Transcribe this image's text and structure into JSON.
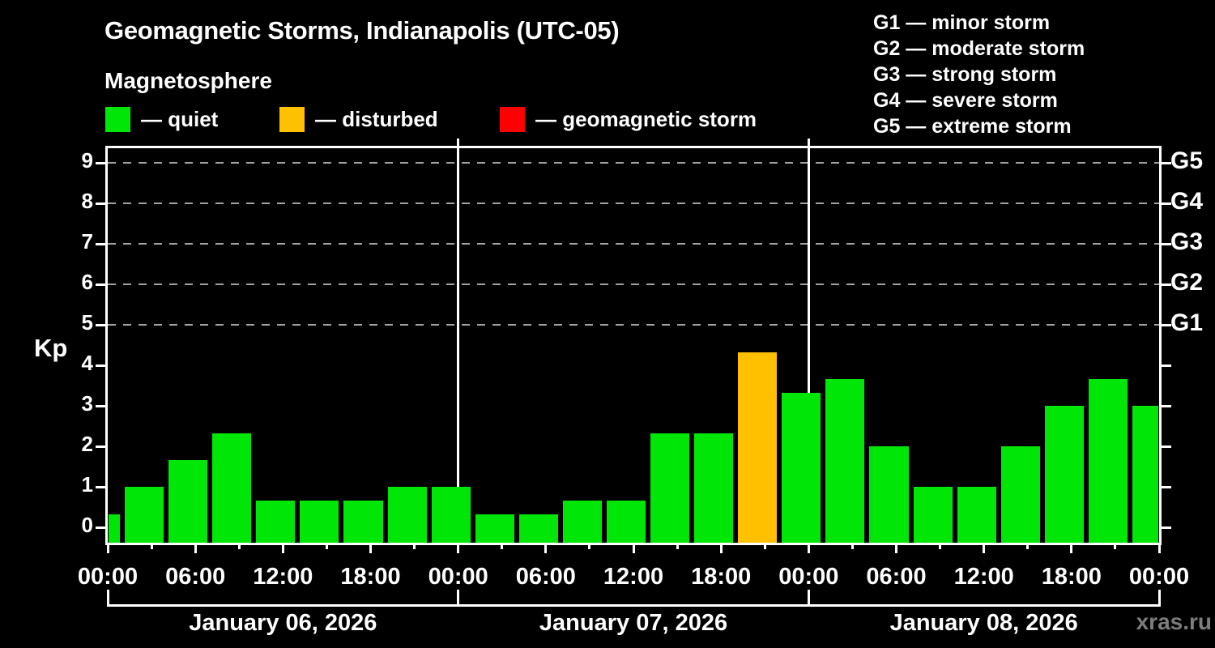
{
  "header": {
    "title": "Geomagnetic Storms, Indianapolis (UTC-05)",
    "subtitle": "Magnetosphere"
  },
  "legend": [
    {
      "key": "quiet",
      "label": "— quiet",
      "color": "#00e606"
    },
    {
      "key": "disturbed",
      "label": "— disturbed",
      "color": "#ffc000"
    },
    {
      "key": "storm",
      "label": "— geomagnetic storm",
      "color": "#ff0000"
    }
  ],
  "g_legend": [
    {
      "label": "G1 — minor storm"
    },
    {
      "label": "G2 — moderate storm"
    },
    {
      "label": "G3 — strong storm"
    },
    {
      "label": "G4 — severe storm"
    },
    {
      "label": "G5 — extreme storm"
    }
  ],
  "watermark": "xras.ru",
  "chart_data": {
    "type": "bar",
    "title": "Geomagnetic Storms, Indianapolis (UTC-05)",
    "ylabel": "Kp",
    "ylim": [
      -0.38,
      9.74
    ],
    "xlim_hours": [
      0,
      72
    ],
    "grid": "dashed horizontal at Kp 5-9 only",
    "y_ticks": [
      0,
      1,
      2,
      3,
      4,
      5,
      6,
      7,
      8,
      9
    ],
    "right_axis_labels": [
      {
        "kp": 5,
        "label": "G1"
      },
      {
        "kp": 6,
        "label": "G2"
      },
      {
        "kp": 7,
        "label": "G3"
      },
      {
        "kp": 8,
        "label": "G4"
      },
      {
        "kp": 9,
        "label": "G5"
      }
    ],
    "x_ticks": [
      {
        "hour": 0,
        "label": "00:00"
      },
      {
        "hour": 3,
        "label": ""
      },
      {
        "hour": 6,
        "label": "06:00"
      },
      {
        "hour": 9,
        "label": ""
      },
      {
        "hour": 12,
        "label": "12:00"
      },
      {
        "hour": 15,
        "label": ""
      },
      {
        "hour": 18,
        "label": "18:00"
      },
      {
        "hour": 21,
        "label": ""
      },
      {
        "hour": 24,
        "label": "00:00"
      },
      {
        "hour": 27,
        "label": ""
      },
      {
        "hour": 30,
        "label": "06:00"
      },
      {
        "hour": 33,
        "label": ""
      },
      {
        "hour": 36,
        "label": "12:00"
      },
      {
        "hour": 39,
        "label": ""
      },
      {
        "hour": 42,
        "label": "18:00"
      },
      {
        "hour": 45,
        "label": ""
      },
      {
        "hour": 48,
        "label": "00:00"
      },
      {
        "hour": 51,
        "label": ""
      },
      {
        "hour": 54,
        "label": "06:00"
      },
      {
        "hour": 57,
        "label": ""
      },
      {
        "hour": 60,
        "label": "12:00"
      },
      {
        "hour": 63,
        "label": ""
      },
      {
        "hour": 66,
        "label": "18:00"
      },
      {
        "hour": 69,
        "label": ""
      },
      {
        "hour": 72,
        "label": "00:00"
      }
    ],
    "days": [
      {
        "label": "January 06, 2026",
        "start_hour": 0,
        "end_hour": 24
      },
      {
        "label": "January 07, 2026",
        "start_hour": 24,
        "end_hour": 48
      },
      {
        "label": "January 08, 2026",
        "start_hour": 48,
        "end_hour": 72
      }
    ],
    "day_separators_hours": [
      24,
      48
    ],
    "bars": [
      {
        "start_hour": 0,
        "end_hour": 1,
        "kp": 0.33,
        "status": "quiet"
      },
      {
        "start_hour": 1,
        "end_hour": 4,
        "kp": 1.0,
        "status": "quiet"
      },
      {
        "start_hour": 4,
        "end_hour": 7,
        "kp": 1.67,
        "status": "quiet"
      },
      {
        "start_hour": 7,
        "end_hour": 10,
        "kp": 2.33,
        "status": "quiet"
      },
      {
        "start_hour": 10,
        "end_hour": 13,
        "kp": 0.67,
        "status": "quiet"
      },
      {
        "start_hour": 13,
        "end_hour": 16,
        "kp": 0.67,
        "status": "quiet"
      },
      {
        "start_hour": 16,
        "end_hour": 19,
        "kp": 0.67,
        "status": "quiet"
      },
      {
        "start_hour": 19,
        "end_hour": 22,
        "kp": 1.0,
        "status": "quiet"
      },
      {
        "start_hour": 22,
        "end_hour": 25,
        "kp": 1.0,
        "status": "quiet"
      },
      {
        "start_hour": 25,
        "end_hour": 28,
        "kp": 0.33,
        "status": "quiet"
      },
      {
        "start_hour": 28,
        "end_hour": 31,
        "kp": 0.33,
        "status": "quiet"
      },
      {
        "start_hour": 31,
        "end_hour": 34,
        "kp": 0.67,
        "status": "quiet"
      },
      {
        "start_hour": 34,
        "end_hour": 37,
        "kp": 0.67,
        "status": "quiet"
      },
      {
        "start_hour": 37,
        "end_hour": 40,
        "kp": 2.33,
        "status": "quiet"
      },
      {
        "start_hour": 40,
        "end_hour": 43,
        "kp": 2.33,
        "status": "quiet"
      },
      {
        "start_hour": 43,
        "end_hour": 46,
        "kp": 4.33,
        "status": "disturbed"
      },
      {
        "start_hour": 46,
        "end_hour": 49,
        "kp": 3.33,
        "status": "quiet"
      },
      {
        "start_hour": 49,
        "end_hour": 52,
        "kp": 3.67,
        "status": "quiet"
      },
      {
        "start_hour": 52,
        "end_hour": 55,
        "kp": 2.0,
        "status": "quiet"
      },
      {
        "start_hour": 55,
        "end_hour": 58,
        "kp": 1.0,
        "status": "quiet"
      },
      {
        "start_hour": 58,
        "end_hour": 61,
        "kp": 1.0,
        "status": "quiet"
      },
      {
        "start_hour": 61,
        "end_hour": 64,
        "kp": 2.0,
        "status": "quiet"
      },
      {
        "start_hour": 64,
        "end_hour": 67,
        "kp": 3.0,
        "status": "quiet"
      },
      {
        "start_hour": 67,
        "end_hour": 70,
        "kp": 3.67,
        "status": "quiet"
      },
      {
        "start_hour": 70,
        "end_hour": 72,
        "kp": 3.0,
        "status": "quiet"
      }
    ]
  }
}
